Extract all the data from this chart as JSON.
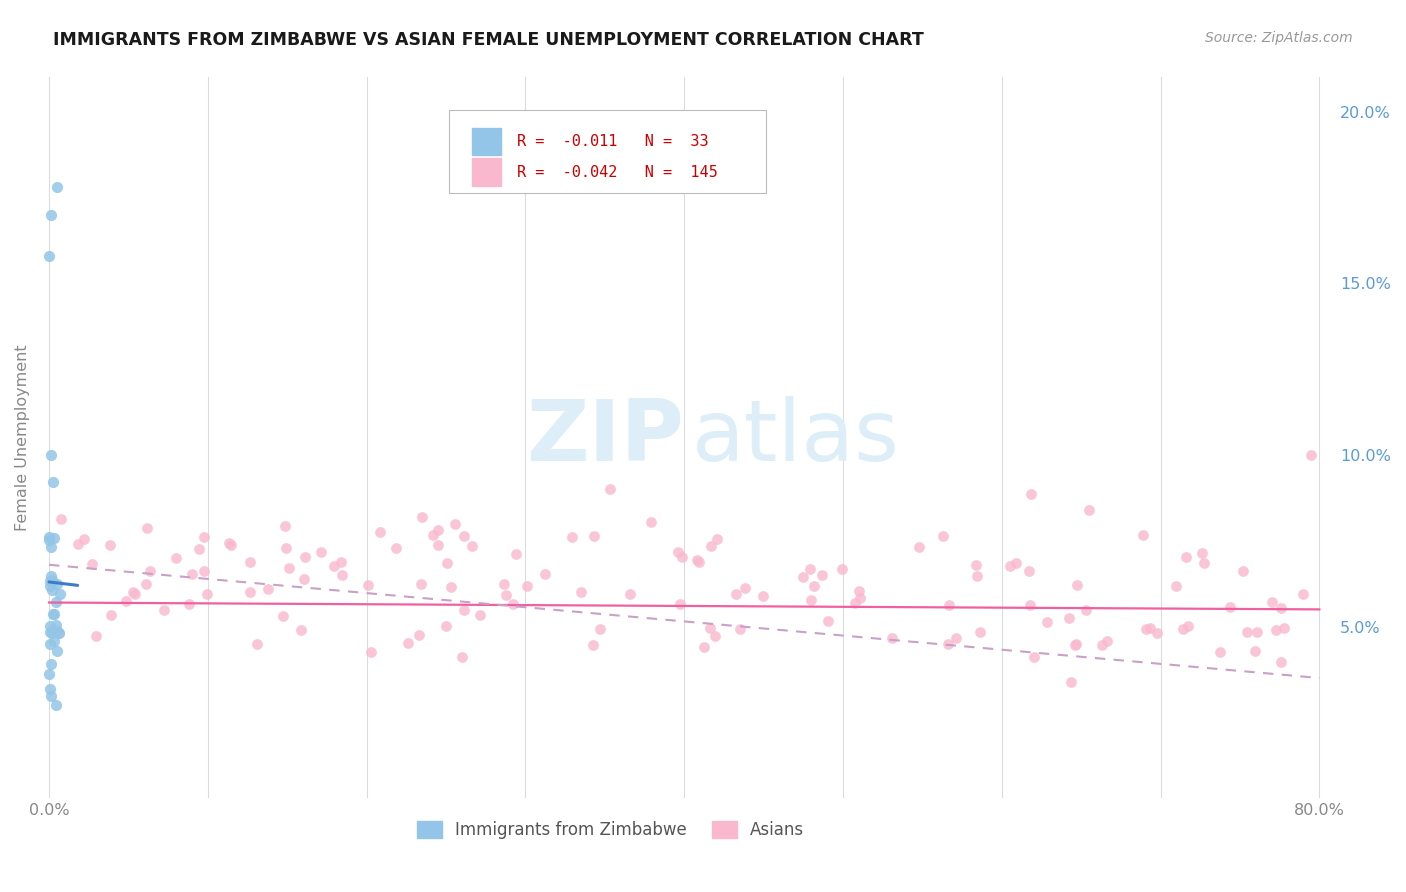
{
  "title": "IMMIGRANTS FROM ZIMBABWE VS ASIAN FEMALE UNEMPLOYMENT CORRELATION CHART",
  "source": "Source: ZipAtlas.com",
  "ylabel": "Female Unemployment",
  "xlim": [
    -0.005,
    0.81
  ],
  "ylim": [
    0.0,
    0.21
  ],
  "xticks": [
    0.0,
    0.1,
    0.2,
    0.3,
    0.4,
    0.5,
    0.6,
    0.7,
    0.8
  ],
  "xticklabels": [
    "0.0%",
    "",
    "",
    "",
    "",
    "",
    "",
    "",
    "80.0%"
  ],
  "ytick_right_vals": [
    0.05,
    0.1,
    0.15,
    0.2
  ],
  "ytick_right_labels": [
    "5.0%",
    "10.0%",
    "15.0%",
    "20.0%"
  ],
  "legend_R1": "-0.011",
  "legend_N1": "33",
  "legend_R2": "-0.042",
  "legend_N2": "145",
  "color_blue": "#92C5E8",
  "color_pink": "#F9B8CE",
  "color_blue_line": "#3B7DC8",
  "color_pink_line": "#F060A0",
  "color_pink_dashed": "#C8A0C8",
  "watermark": "ZIPatlas",
  "bg": "#FFFFFF",
  "grid_color": "#DCDCDC",
  "title_color": "#1A1A1A",
  "source_color": "#999999",
  "ylabel_color": "#888888",
  "tick_color": "#888888",
  "legend_text_color": "#CC0000"
}
